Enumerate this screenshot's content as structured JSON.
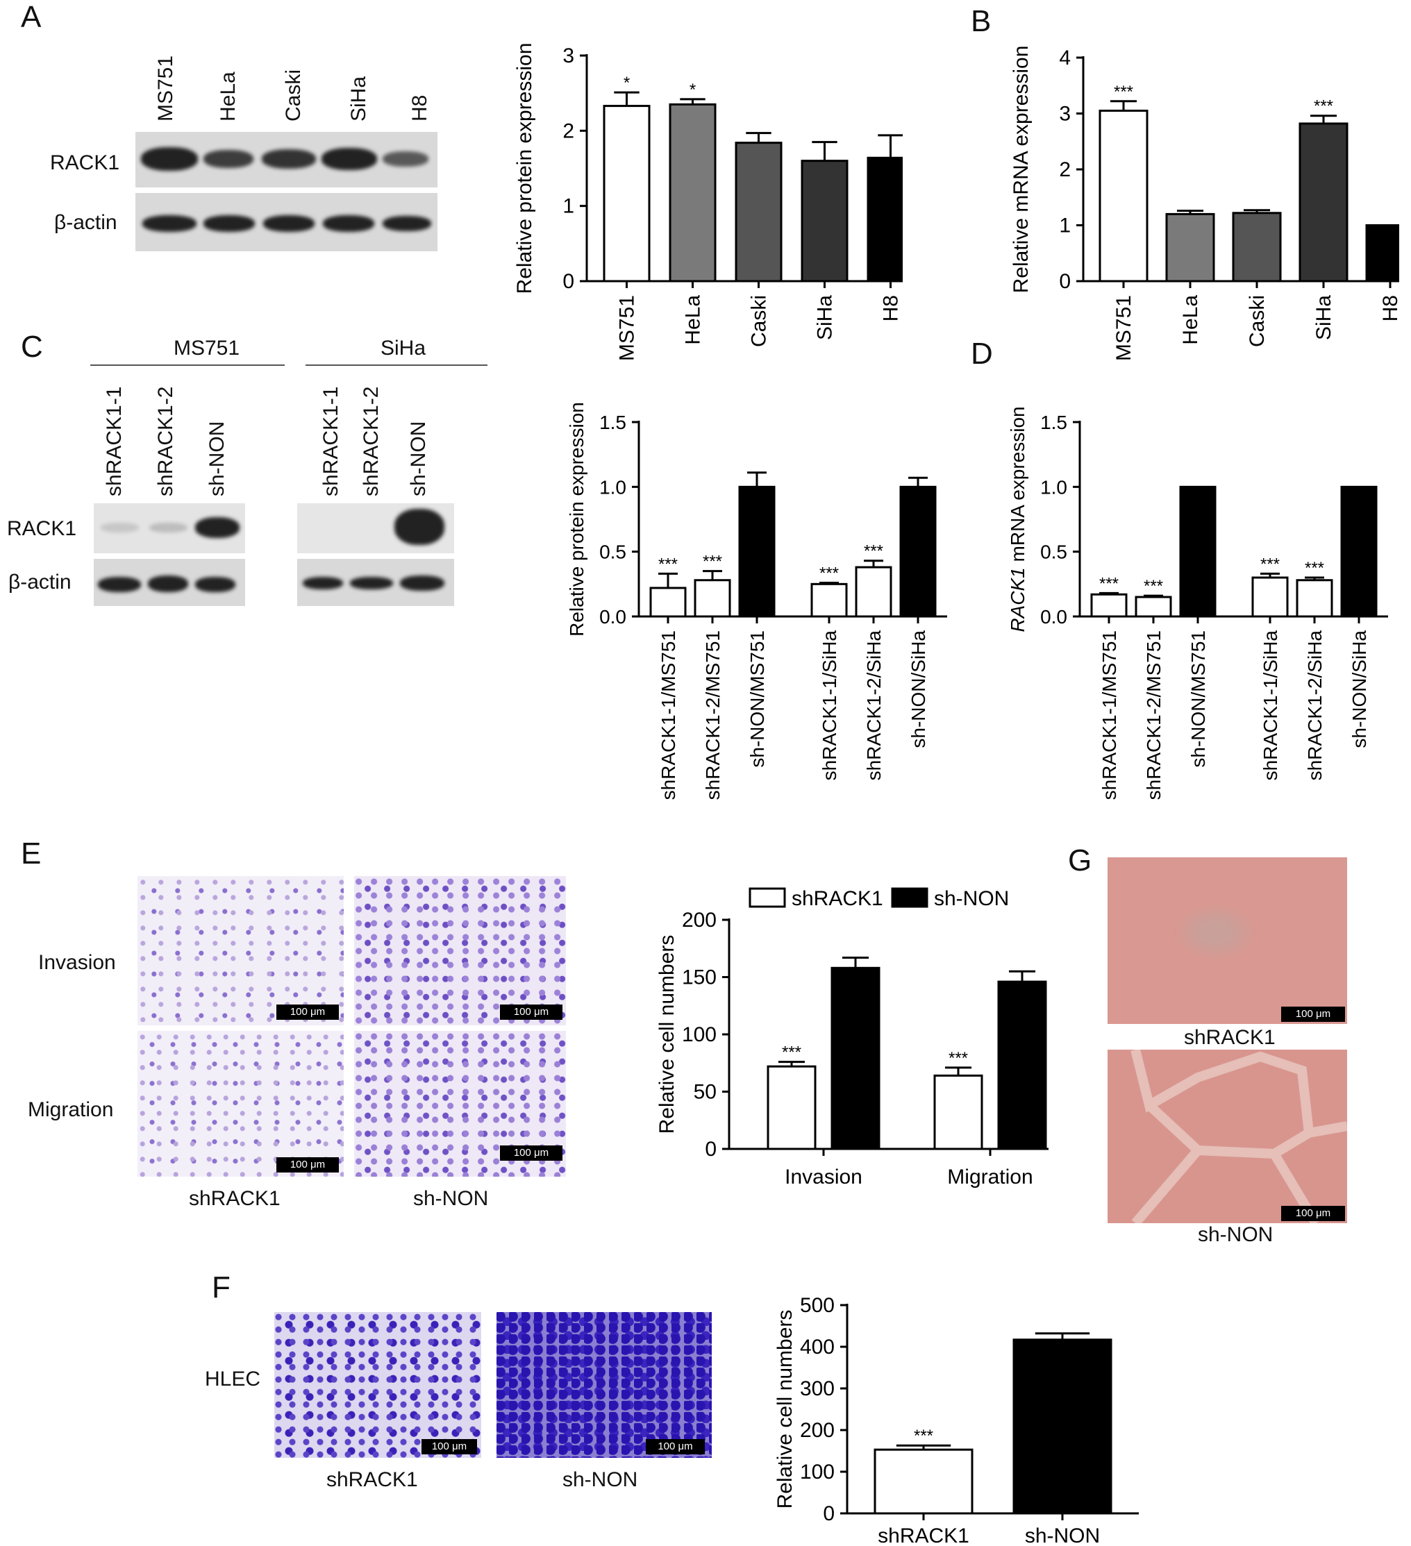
{
  "panels": {
    "A": "A",
    "B": "B",
    "C": "C",
    "D": "D",
    "E": "E",
    "F": "F",
    "G": "G"
  },
  "blotA": {
    "lanes": [
      "MS751",
      "HeLa",
      "Caski",
      "SiHa",
      "H8"
    ],
    "rows": [
      "RACK1",
      "β-actin"
    ]
  },
  "blotC": {
    "group1": "MS751",
    "group2": "SiHa",
    "lanes": [
      "shRACK1-1",
      "shRACK1-2",
      "sh-NON"
    ],
    "rows": [
      "RACK1",
      "β-actin"
    ]
  },
  "micrographE": {
    "rows": [
      "Invasion",
      "Migration"
    ],
    "cols": [
      "shRACK1",
      "sh-NON"
    ],
    "scale": "100 μm"
  },
  "micrographF": {
    "row": "HLEC",
    "cols": [
      "shRACK1",
      "sh-NON"
    ],
    "scale": "100 μm"
  },
  "micrographG": {
    "captions": [
      "shRACK1",
      "sh-NON"
    ],
    "scale": "100 μm"
  },
  "chart_data": [
    {
      "id": "A",
      "type": "bar",
      "ylabel": "Relative protein expression",
      "ylim": [
        0,
        3
      ],
      "yticks": [
        0,
        1,
        2,
        3
      ],
      "categories": [
        "MS751",
        "HeLa",
        "Caski",
        "SiHa",
        "H8"
      ],
      "values": [
        2.33,
        2.35,
        1.84,
        1.6,
        1.64
      ],
      "errors": [
        0.18,
        0.07,
        0.13,
        0.25,
        0.3
      ],
      "colors": [
        "#ffffff",
        "#7a7a7a",
        "#555555",
        "#333333",
        "#000000"
      ],
      "significance": [
        "*",
        "*",
        "",
        "",
        ""
      ]
    },
    {
      "id": "B",
      "type": "bar",
      "ylabel": "Relative mRNA expression",
      "ylim": [
        0,
        4
      ],
      "yticks": [
        0,
        1,
        2,
        3,
        4
      ],
      "categories": [
        "MS751",
        "HeLa",
        "Caski",
        "SiHa",
        "H8"
      ],
      "values": [
        3.05,
        1.2,
        1.22,
        2.82,
        1.0
      ],
      "errors": [
        0.17,
        0.06,
        0.05,
        0.14,
        0.0
      ],
      "colors": [
        "#ffffff",
        "#7a7a7a",
        "#555555",
        "#333333",
        "#000000"
      ],
      "significance": [
        "***",
        "",
        "",
        "***",
        ""
      ]
    },
    {
      "id": "C",
      "type": "bar",
      "ylabel": "Relative protein expression",
      "ylim": [
        0,
        1.5
      ],
      "yticks": [
        "0.0",
        "0.5",
        "1.0",
        "1.5"
      ],
      "categories": [
        "shRACK1-1/MS751",
        "shRACK1-2/MS751",
        "sh-NON/MS751",
        "shRACK1-1/SiHa",
        "shRACK1-2/SiHa",
        "sh-NON/SiHa"
      ],
      "values": [
        0.22,
        0.28,
        1.0,
        0.25,
        0.38,
        1.0
      ],
      "errors": [
        0.11,
        0.07,
        0.11,
        0.01,
        0.05,
        0.07
      ],
      "colors": [
        "#ffffff",
        "#ffffff",
        "#000000",
        "#ffffff",
        "#ffffff",
        "#000000"
      ],
      "significance": [
        "***",
        "***",
        "",
        "***",
        "***",
        ""
      ]
    },
    {
      "id": "D",
      "type": "bar",
      "ylabel_italic": "RACK1",
      "ylabel": " mRNA expression",
      "ylim": [
        0,
        1.5
      ],
      "yticks": [
        "0.0",
        "0.5",
        "1.0",
        "1.5"
      ],
      "categories": [
        "shRACK1-1/MS751",
        "shRACK1-2/MS751",
        "sh-NON/MS751",
        "shRACK1-1/SiHa",
        "shRACK1-2/SiHa",
        "sh-NON/SiHa"
      ],
      "values": [
        0.17,
        0.15,
        1.0,
        0.3,
        0.28,
        1.0
      ],
      "errors": [
        0.01,
        0.01,
        0.0,
        0.03,
        0.02,
        0.0
      ],
      "colors": [
        "#ffffff",
        "#ffffff",
        "#000000",
        "#ffffff",
        "#ffffff",
        "#000000"
      ],
      "significance": [
        "***",
        "***",
        "",
        "***",
        "***",
        ""
      ]
    },
    {
      "id": "E",
      "type": "bar",
      "ylabel": "Relative cell numbers",
      "ylim": [
        0,
        200
      ],
      "yticks": [
        0,
        50,
        100,
        150,
        200
      ],
      "categories": [
        "Invasion",
        "Migration"
      ],
      "series": [
        {
          "name": "shRACK1",
          "values": [
            72,
            64
          ],
          "errors": [
            4,
            7
          ],
          "color": "#ffffff",
          "significance": [
            "***",
            "***"
          ]
        },
        {
          "name": "sh-NON",
          "values": [
            158,
            146
          ],
          "errors": [
            9,
            9
          ],
          "color": "#000000",
          "significance": [
            "",
            ""
          ]
        }
      ],
      "legend": "top"
    },
    {
      "id": "F",
      "type": "bar",
      "ylabel": "Relative cell numbers",
      "ylim": [
        0,
        500
      ],
      "yticks": [
        0,
        100,
        200,
        300,
        400,
        500
      ],
      "categories": [
        "shRACK1",
        "sh-NON"
      ],
      "values": [
        153,
        417
      ],
      "errors": [
        10,
        15
      ],
      "colors": [
        "#ffffff",
        "#000000"
      ],
      "significance": [
        "***",
        ""
      ]
    }
  ]
}
